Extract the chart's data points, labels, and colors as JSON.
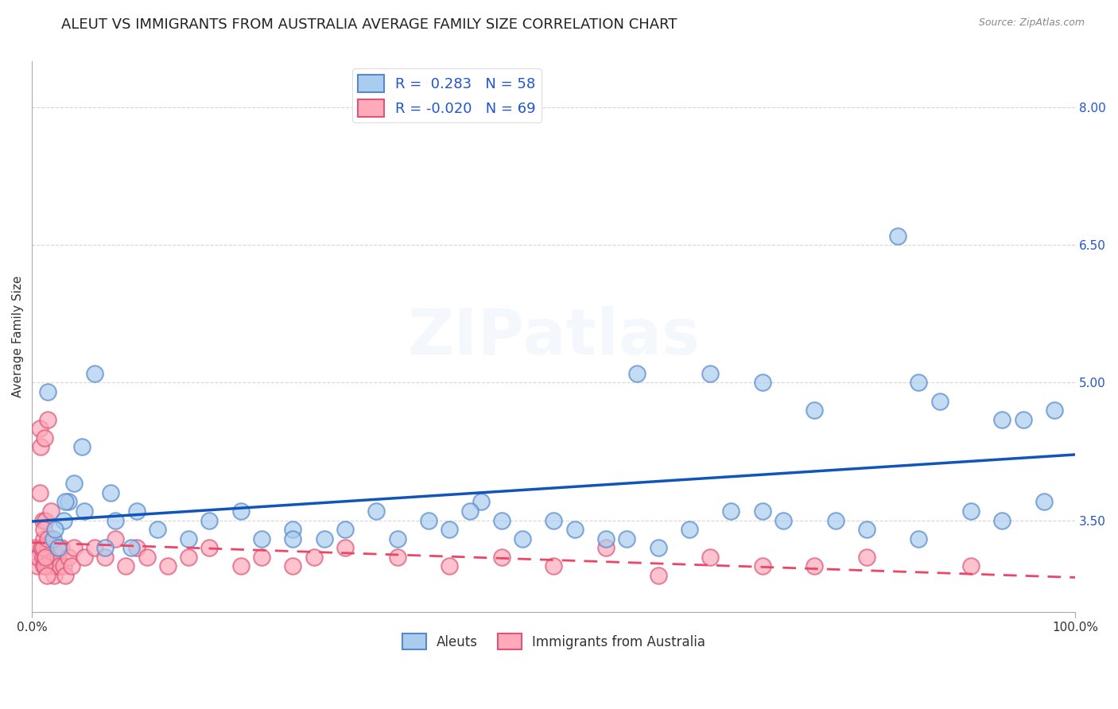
{
  "title": "ALEUT VS IMMIGRANTS FROM AUSTRALIA AVERAGE FAMILY SIZE CORRELATION CHART",
  "source": "Source: ZipAtlas.com",
  "ylabel": "Average Family Size",
  "xmin": 0.0,
  "xmax": 100.0,
  "ymin": 2.5,
  "ymax": 8.5,
  "yticks_right": [
    3.5,
    5.0,
    6.5,
    8.0
  ],
  "yticks_right_labels": [
    "3.50",
    "5.00",
    "6.50",
    "8.00"
  ],
  "xtick_labels": [
    "0.0%",
    "100.0%"
  ],
  "aleut_color": "#5588cc",
  "aleut_fill": "#aaccee",
  "immigrant_color": "#dd5577",
  "immigrant_fill": "#ffaabb",
  "legend_blue_label": "R =  0.283   N = 58",
  "legend_pink_label": "R = -0.020   N = 69",
  "legend_bottom_blue": "Aleuts",
  "legend_bottom_pink": "Immigrants from Australia",
  "aleut_x": [
    1.5,
    2.0,
    2.5,
    3.0,
    3.5,
    4.0,
    5.0,
    6.0,
    7.0,
    8.0,
    10.0,
    12.0,
    15.0,
    17.0,
    20.0,
    22.0,
    25.0,
    28.0,
    30.0,
    33.0,
    35.0,
    38.0,
    40.0,
    43.0,
    45.0,
    47.0,
    50.0,
    52.0,
    55.0,
    58.0,
    60.0,
    63.0,
    65.0,
    67.0,
    70.0,
    72.0,
    75.0,
    77.0,
    80.0,
    83.0,
    85.0,
    87.0,
    90.0,
    93.0,
    95.0,
    97.0,
    2.2,
    3.2,
    4.8,
    7.5,
    9.5,
    25.0,
    42.0,
    57.0,
    70.0,
    85.0,
    93.0,
    98.0
  ],
  "aleut_y": [
    4.9,
    3.3,
    3.2,
    3.5,
    3.7,
    3.9,
    3.6,
    5.1,
    3.2,
    3.5,
    3.6,
    3.4,
    3.3,
    3.5,
    3.6,
    3.3,
    3.4,
    3.3,
    3.4,
    3.6,
    3.3,
    3.5,
    3.4,
    3.7,
    3.5,
    3.3,
    3.5,
    3.4,
    3.3,
    5.1,
    3.2,
    3.4,
    5.1,
    3.6,
    5.0,
    3.5,
    4.7,
    3.5,
    3.4,
    6.6,
    5.0,
    4.8,
    3.6,
    3.5,
    4.6,
    3.7,
    3.4,
    3.7,
    4.3,
    3.8,
    3.2,
    3.3,
    3.6,
    3.3,
    3.6,
    3.3,
    4.6,
    4.7
  ],
  "immigrant_x": [
    0.3,
    0.4,
    0.5,
    0.6,
    0.7,
    0.7,
    0.8,
    0.9,
    1.0,
    1.0,
    1.1,
    1.1,
    1.2,
    1.2,
    1.3,
    1.3,
    1.4,
    1.5,
    1.5,
    1.6,
    1.7,
    1.8,
    1.8,
    1.9,
    2.0,
    2.1,
    2.2,
    2.3,
    2.4,
    2.5,
    2.6,
    2.8,
    3.0,
    3.2,
    3.5,
    3.8,
    4.0,
    5.0,
    6.0,
    7.0,
    8.0,
    9.0,
    10.0,
    11.0,
    13.0,
    15.0,
    17.0,
    20.0,
    22.0,
    25.0,
    27.0,
    30.0,
    35.0,
    40.0,
    45.0,
    50.0,
    55.0,
    60.0,
    65.0,
    70.0,
    75.0,
    80.0,
    90.0,
    1.0,
    1.1,
    1.2,
    1.3,
    1.4,
    1.5
  ],
  "immigrant_y": [
    3.2,
    3.1,
    3.0,
    3.1,
    4.5,
    3.8,
    4.3,
    3.2,
    3.1,
    3.5,
    3.0,
    3.3,
    3.2,
    4.4,
    3.1,
    3.5,
    3.0,
    3.2,
    4.6,
    3.0,
    3.1,
    3.3,
    3.6,
    3.0,
    3.2,
    2.9,
    3.1,
    3.0,
    3.2,
    3.1,
    3.0,
    3.2,
    3.0,
    2.9,
    3.1,
    3.0,
    3.2,
    3.1,
    3.2,
    3.1,
    3.3,
    3.0,
    3.2,
    3.1,
    3.0,
    3.1,
    3.2,
    3.0,
    3.1,
    3.0,
    3.1,
    3.2,
    3.1,
    3.0,
    3.1,
    3.0,
    3.2,
    2.9,
    3.1,
    3.0,
    3.0,
    3.1,
    3.0,
    3.2,
    3.4,
    3.0,
    3.1,
    2.9,
    3.3
  ],
  "background_color": "#ffffff",
  "grid_color": "#cccccc",
  "title_fontsize": 13,
  "axis_label_fontsize": 11,
  "tick_fontsize": 11,
  "watermark_text": "ZIPatlas",
  "watermark_alpha": 0.13
}
